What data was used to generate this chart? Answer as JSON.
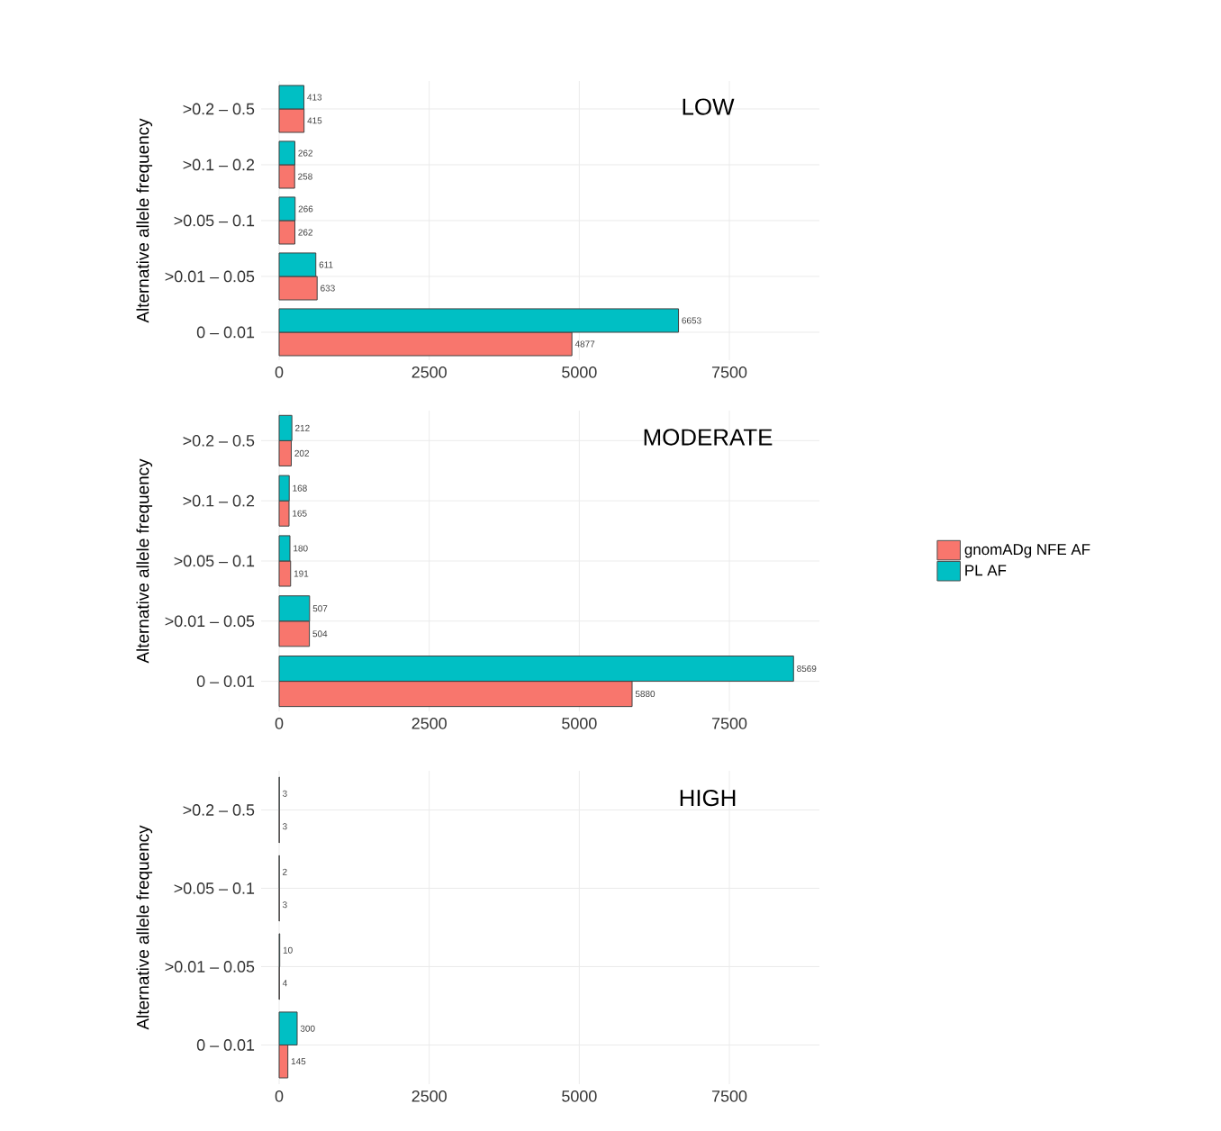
{
  "chart_data": [
    {
      "type": "bar",
      "orientation": "horizontal",
      "title": "LOW",
      "ylabel": "Alternative allele frequency",
      "categories": [
        ">0.2 – 0.5",
        ">0.1 – 0.2",
        ">0.05 – 0.1",
        ">0.01 – 0.05",
        "0 – 0.01"
      ],
      "series": [
        {
          "color": "#f8766d",
          "values": [
            415,
            258,
            262,
            633,
            4877
          ]
        },
        {
          "color": "#00bfc4",
          "values": [
            413,
            262,
            266,
            611,
            6653
          ]
        }
      ],
      "xlim": [
        -300,
        9000
      ],
      "xticks": [
        0,
        2500,
        5000,
        7500
      ],
      "grid": true,
      "data_labels": true,
      "legend": false
    },
    {
      "type": "bar",
      "orientation": "horizontal",
      "title": "MODERATE",
      "ylabel": "Alternative allele frequency",
      "categories": [
        ">0.2 – 0.5",
        ">0.1 – 0.2",
        ">0.05 – 0.1",
        ">0.01 – 0.05",
        "0 – 0.01"
      ],
      "series": [
        {
          "name": "gnomADg NFE AF",
          "color": "#f8766d",
          "values": [
            202,
            165,
            191,
            504,
            5880
          ]
        },
        {
          "name": "PL AF",
          "color": "#00bfc4",
          "values": [
            212,
            168,
            180,
            507,
            8569
          ]
        }
      ],
      "xlim": [
        -300,
        9000
      ],
      "xticks": [
        0,
        2500,
        5000,
        7500
      ],
      "grid": true,
      "data_labels": true,
      "legend": "right"
    },
    {
      "type": "bar",
      "orientation": "horizontal",
      "title": "HIGH",
      "ylabel": "Alternative allele frequency",
      "categories": [
        ">0.2 – 0.5",
        ">0.05 – 0.1",
        ">0.01 – 0.05",
        "0 – 0.01"
      ],
      "series": [
        {
          "color": "#f8766d",
          "values": [
            3,
            3,
            4,
            145
          ]
        },
        {
          "color": "#00bfc4",
          "values": [
            3,
            2,
            10,
            300
          ]
        }
      ],
      "xlim": [
        -300,
        9000
      ],
      "xticks": [
        0,
        2500,
        5000,
        7500
      ],
      "grid": true,
      "data_labels": true,
      "legend": false
    }
  ]
}
